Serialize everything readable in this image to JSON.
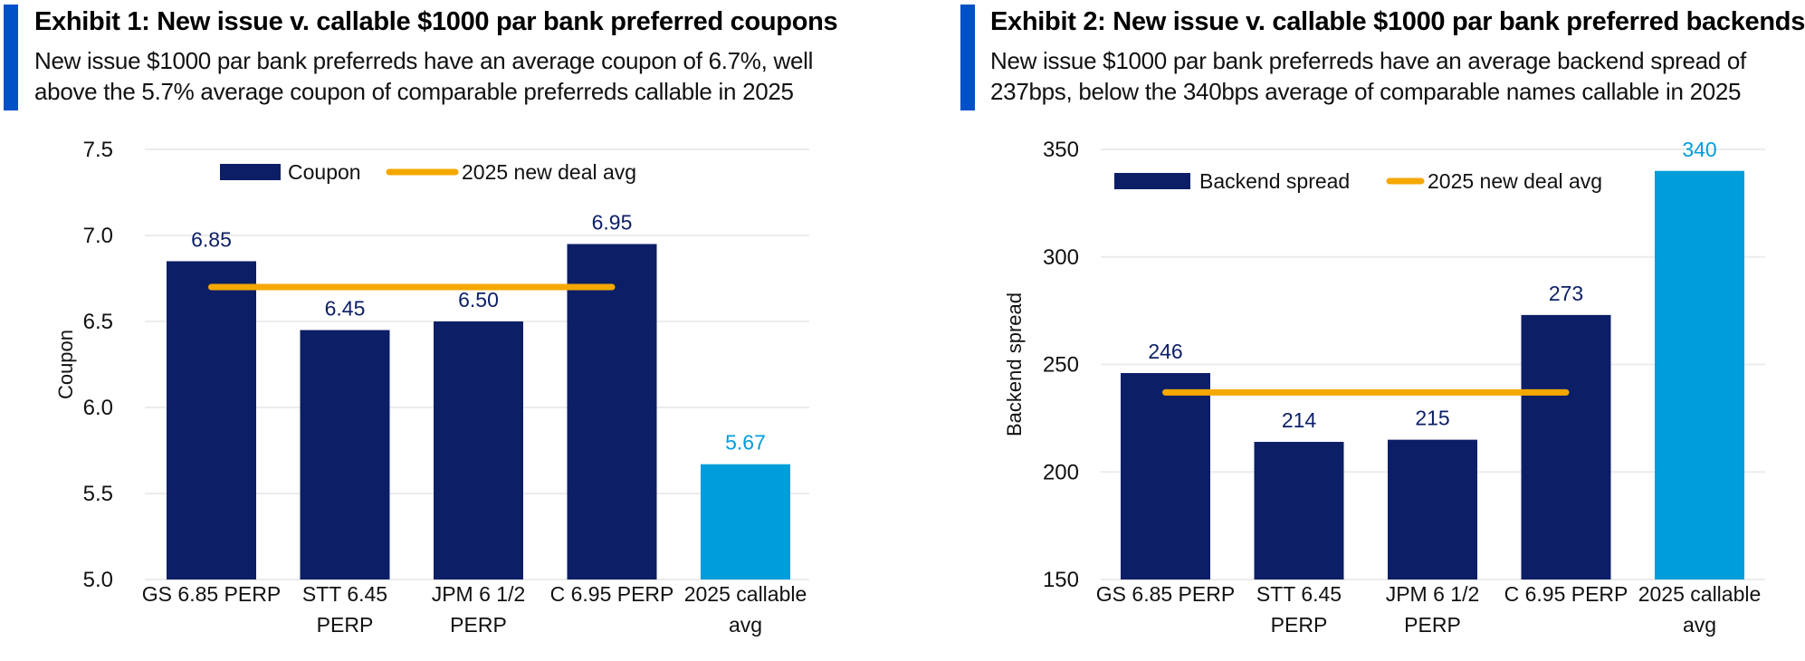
{
  "colors": {
    "accent": "#0050c8",
    "navy": "#0c1f66",
    "light_blue": "#009ddb",
    "orange": "#f5a800",
    "grid": "#ececec"
  },
  "chart_data": [
    {
      "type": "bar",
      "title": "Exhibit 1: New issue v. callable $1000 par bank preferred coupons",
      "subtitle_lines": [
        "New issue $1000 par bank preferreds have an average coupon of 6.7%, well",
        "above the 5.7% average coupon of comparable preferreds callable in 2025"
      ],
      "categories": [
        [
          "GS 6.85 PERP"
        ],
        [
          "STT 6.45",
          "PERP"
        ],
        [
          "JPM 6 1/2",
          "PERP"
        ],
        [
          "C 6.95 PERP"
        ],
        [
          "2025 callable",
          "avg"
        ]
      ],
      "values": [
        6.85,
        6.45,
        6.5,
        6.95,
        5.67
      ],
      "value_labels": [
        "6.85",
        "6.45",
        "6.50",
        "6.95",
        "5.67"
      ],
      "highlight_last": true,
      "avg_line": {
        "name": "2025 new deal avg",
        "value": 6.7,
        "span": [
          0,
          3
        ]
      },
      "series_name": "Coupon",
      "ylabel": "Coupon",
      "ylim": [
        5.0,
        7.5
      ],
      "yticks": [
        "5.0",
        "5.5",
        "6.0",
        "6.5",
        "7.0",
        "7.5"
      ],
      "ytick_values": [
        5.0,
        5.5,
        6.0,
        6.5,
        7.0,
        7.5
      ],
      "legend": "top",
      "grid": true
    },
    {
      "type": "bar",
      "title": "Exhibit 2: New issue v. callable $1000 par bank preferred backends",
      "subtitle_lines": [
        "New issue $1000 par bank preferreds have an average backend spread of",
        "237bps, below the 340bps average of comparable names callable in 2025"
      ],
      "categories": [
        [
          "GS 6.85 PERP"
        ],
        [
          "STT 6.45",
          "PERP"
        ],
        [
          "JPM 6 1/2",
          "PERP"
        ],
        [
          "C 6.95 PERP"
        ],
        [
          "2025 callable",
          "avg"
        ]
      ],
      "values": [
        246,
        214,
        215,
        273,
        340
      ],
      "value_labels": [
        "246",
        "214",
        "215",
        "273",
        "340"
      ],
      "highlight_last": true,
      "avg_line": {
        "name": "2025 new deal avg",
        "value": 237,
        "span": [
          0,
          3
        ]
      },
      "series_name": "Backend spread",
      "ylabel": "Backend spread",
      "ylim": [
        150,
        350
      ],
      "yticks": [
        "150",
        "200",
        "250",
        "300",
        "350"
      ],
      "ytick_values": [
        150,
        200,
        250,
        300,
        350
      ],
      "legend": "top",
      "grid": true
    }
  ]
}
